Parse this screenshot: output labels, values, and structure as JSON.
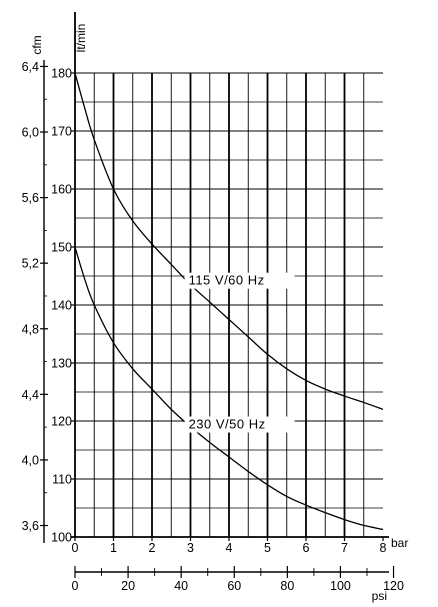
{
  "chart_data": {
    "type": "line",
    "x_bar": {
      "label": "bar",
      "range": [
        0,
        8
      ],
      "ticks": [
        "0",
        "1",
        "2",
        "3",
        "4",
        "5",
        "6",
        "7",
        "8"
      ]
    },
    "x_psi": {
      "label": "psi",
      "range": [
        0,
        116.03
      ],
      "ticks": [
        "0",
        "20",
        "40",
        "60",
        "80",
        "100",
        "120"
      ],
      "tick_values": [
        0,
        20,
        40,
        60,
        80,
        100,
        120
      ]
    },
    "y_lmin": {
      "label": "lt/min",
      "range": [
        100,
        180
      ],
      "ticks": [
        "100",
        "110",
        "120",
        "130",
        "140",
        "150",
        "160",
        "170",
        "180"
      ],
      "tick_values": [
        100,
        110,
        120,
        130,
        140,
        150,
        160,
        170,
        180
      ]
    },
    "y_cfm": {
      "label": "cfm",
      "range": [
        3.53,
        6.36
      ],
      "ticks": [
        "3,6",
        "4,0",
        "4,4",
        "4,8",
        "5,2",
        "5,6",
        "6,0",
        "6,4"
      ],
      "tick_values": [
        3.6,
        4.0,
        4.4,
        4.8,
        5.2,
        5.6,
        6.0,
        6.4
      ]
    },
    "grid": true,
    "series": [
      {
        "annotation": "115 V/60 Hz",
        "x": [
          0,
          0.25,
          0.5,
          1,
          1.5,
          2,
          2.5,
          3,
          3.5,
          4,
          4.5,
          5,
          5.5,
          6,
          6.5,
          7,
          7.5,
          8
        ],
        "y": [
          180,
          174,
          168.5,
          160,
          154.5,
          150.5,
          147,
          143.5,
          140.5,
          137.5,
          134.5,
          131.5,
          129,
          127,
          125.5,
          124.3,
          123.2,
          122
        ]
      },
      {
        "annotation": "230 V/50 Hz",
        "x": [
          0,
          0.25,
          0.5,
          1,
          1.5,
          2,
          2.5,
          3,
          3.5,
          4,
          4.5,
          5,
          5.5,
          6,
          6.5,
          7,
          7.5,
          8
        ],
        "y": [
          150,
          144.5,
          140,
          133.5,
          129,
          125.5,
          122,
          119,
          116.3,
          113.8,
          111.3,
          109,
          107,
          105.5,
          104.2,
          103,
          102,
          101.3
        ]
      }
    ]
  }
}
